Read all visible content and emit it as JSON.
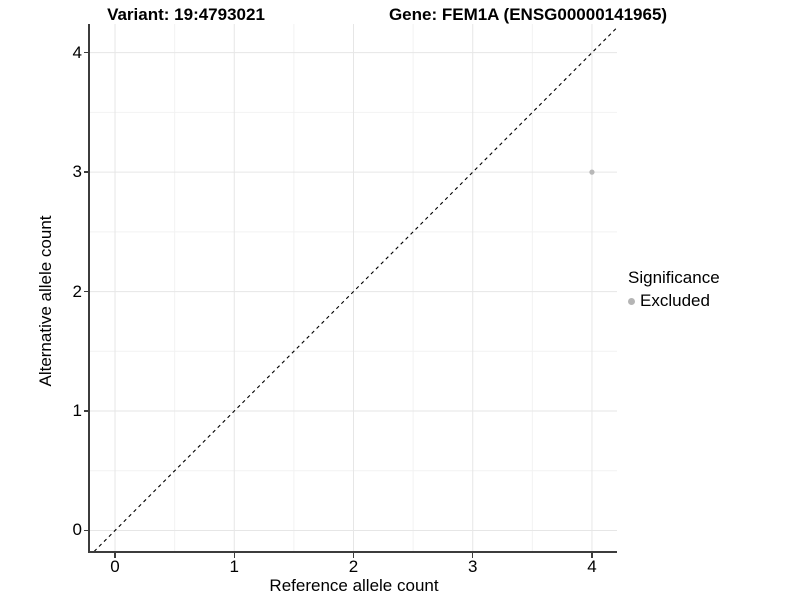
{
  "titles": {
    "variant": "Variant: 19:4793021",
    "gene": "Gene: FEM1A (ENSG00000141965)"
  },
  "legend": {
    "title": "Significance",
    "items": [
      {
        "label": "Excluded",
        "color": "#b5b5b5"
      }
    ]
  },
  "chart_data": {
    "type": "scatter",
    "title_left": "Variant: 19:4793021",
    "title_right": "Gene: FEM1A (ENSG00000141965)",
    "xlabel": "Reference allele count",
    "ylabel": "Alternative allele count",
    "xlim": [
      -0.21,
      4.21
    ],
    "ylim": [
      -0.18,
      4.24
    ],
    "xticks": [
      0,
      1,
      2,
      3,
      4
    ],
    "yticks": [
      0,
      1,
      2,
      3,
      4
    ],
    "minor_grid_step": 0.5,
    "grid": true,
    "legend_position": "right",
    "identity_line": {
      "from": [
        -0.3,
        -0.3
      ],
      "to": [
        4.4,
        4.4
      ],
      "style": "dashed",
      "color": "#000000"
    },
    "points": [
      {
        "x": 4,
        "y": 3,
        "significance": "Excluded",
        "color": "#b8b8b8",
        "radius": 2.6
      }
    ],
    "colors": {
      "major_grid": "#e6e6e6",
      "minor_grid": "#f2f2f2",
      "axis": "#3c3c3c",
      "text": "#000000"
    }
  }
}
